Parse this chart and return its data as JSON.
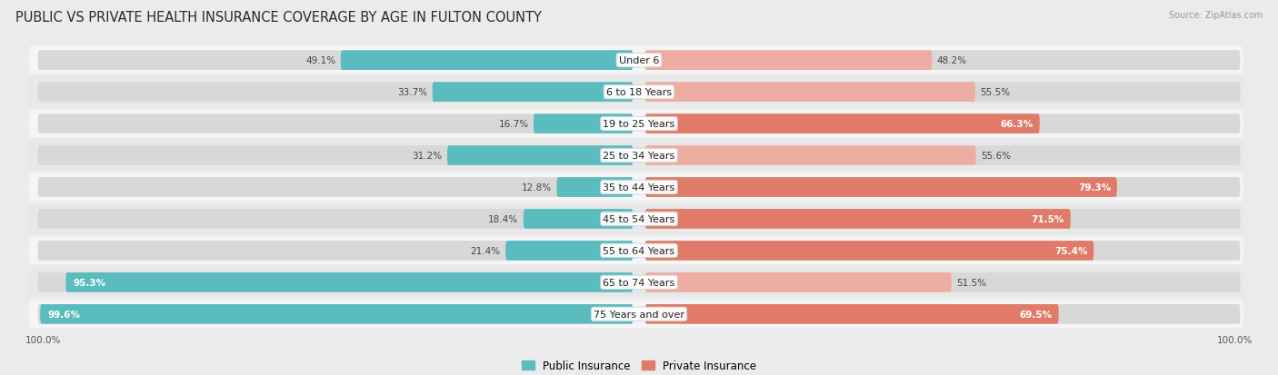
{
  "title": "PUBLIC VS PRIVATE HEALTH INSURANCE COVERAGE BY AGE IN FULTON COUNTY",
  "source": "Source: ZipAtlas.com",
  "categories": [
    "Under 6",
    "6 to 18 Years",
    "19 to 25 Years",
    "25 to 34 Years",
    "35 to 44 Years",
    "45 to 54 Years",
    "55 to 64 Years",
    "65 to 74 Years",
    "75 Years and over"
  ],
  "public_values": [
    49.1,
    33.7,
    16.7,
    31.2,
    12.8,
    18.4,
    21.4,
    95.3,
    99.6
  ],
  "private_values": [
    48.2,
    55.5,
    66.3,
    55.6,
    79.3,
    71.5,
    75.4,
    51.5,
    69.5
  ],
  "public_color": "#5bbcbf",
  "private_color": "#e07b6a",
  "private_color_light": "#eeada3",
  "bg_color": "#ebebeb",
  "row_bg_light": "#f5f5f5",
  "row_bg_mid": "#e8e8e8",
  "bar_bg_color": "#d8d8d8",
  "title_fontsize": 10.5,
  "label_fontsize": 8.0,
  "value_fontsize": 7.5,
  "legend_fontsize": 8.5,
  "axis_label_fontsize": 7.5,
  "max_val": 100.0,
  "white_text_threshold_pub": 85.0,
  "white_text_threshold_priv": 65.0
}
